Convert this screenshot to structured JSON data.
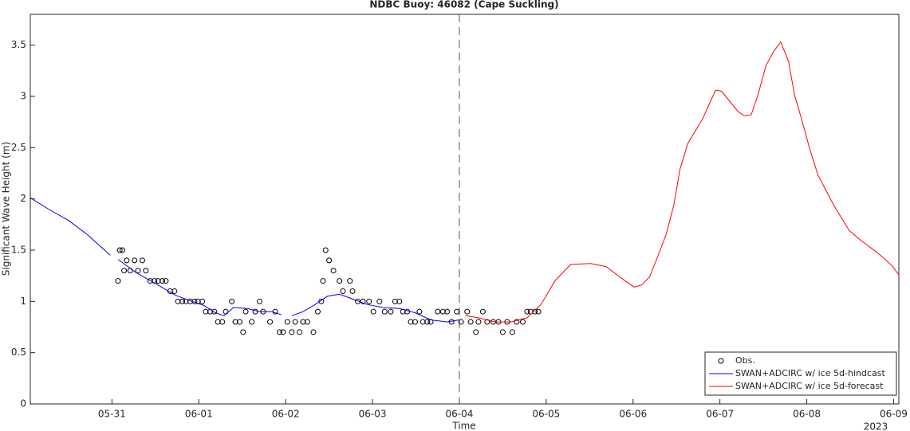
{
  "chart_data": {
    "type": "line",
    "title": "NDBC Buoy: 46082 (Cape Suckling)",
    "xlabel": "Time",
    "ylabel": "Significant Wave Height (m)",
    "year_label": "2023",
    "xlim": [
      -0.94,
      9.06
    ],
    "ylim": [
      0,
      3.8
    ],
    "xticks": [
      {
        "value": 0,
        "label": "05-31"
      },
      {
        "value": 1,
        "label": "06-01"
      },
      {
        "value": 2,
        "label": "06-02"
      },
      {
        "value": 3,
        "label": "06-03"
      },
      {
        "value": 4,
        "label": "06-04"
      },
      {
        "value": 5,
        "label": "06-05"
      },
      {
        "value": 6,
        "label": "06-06"
      },
      {
        "value": 7,
        "label": "06-07"
      },
      {
        "value": 8,
        "label": "06-08"
      },
      {
        "value": 9,
        "label": "06-09"
      }
    ],
    "yticks": [
      0,
      0.5,
      1,
      1.5,
      2,
      2.5,
      3,
      3.5
    ],
    "vline": 4,
    "grid": false,
    "legend": "lower right",
    "series": [
      {
        "name": "Obs.",
        "style": "markers",
        "color": "#000000",
        "x": [
          0.07,
          0.09,
          0.12,
          0.14,
          0.17,
          0.21,
          0.26,
          0.3,
          0.35,
          0.39,
          0.44,
          0.49,
          0.53,
          0.58,
          0.62,
          0.67,
          0.72,
          0.76,
          0.81,
          0.85,
          0.9,
          0.95,
          0.99,
          1.04,
          1.08,
          1.13,
          1.18,
          1.22,
          1.27,
          1.31,
          1.38,
          1.42,
          1.47,
          1.51,
          1.54,
          1.61,
          1.65,
          1.7,
          1.74,
          1.82,
          1.88,
          1.93,
          1.97,
          2.02,
          2.07,
          2.11,
          2.16,
          2.2,
          2.25,
          2.32,
          2.37,
          2.41,
          2.43,
          2.46,
          2.5,
          2.55,
          2.62,
          2.66,
          2.74,
          2.77,
          2.83,
          2.89,
          2.96,
          3.01,
          3.08,
          3.14,
          3.21,
          3.26,
          3.31,
          3.35,
          3.4,
          3.44,
          3.49,
          3.54,
          3.58,
          3.63,
          3.67,
          3.75,
          3.81,
          3.86,
          3.91,
          3.97,
          4.02,
          4.09,
          4.13,
          4.19,
          4.22,
          4.27,
          4.32,
          4.39,
          4.45,
          4.5,
          4.55,
          4.61,
          4.66,
          4.73,
          4.78,
          4.82,
          4.87,
          4.91
        ],
        "values": [
          1.2,
          1.5,
          1.5,
          1.3,
          1.4,
          1.3,
          1.4,
          1.3,
          1.4,
          1.3,
          1.2,
          1.2,
          1.2,
          1.2,
          1.2,
          1.1,
          1.1,
          1.0,
          1.0,
          1.0,
          1.0,
          1.0,
          1.0,
          1.0,
          0.9,
          0.9,
          0.9,
          0.8,
          0.8,
          0.9,
          1.0,
          0.8,
          0.8,
          0.7,
          0.9,
          0.8,
          0.9,
          1.0,
          0.9,
          0.8,
          0.9,
          0.7,
          0.7,
          0.8,
          0.7,
          0.8,
          0.7,
          0.8,
          0.8,
          0.7,
          0.9,
          1.0,
          1.2,
          1.5,
          1.4,
          1.3,
          1.2,
          1.1,
          1.2,
          1.1,
          1.0,
          1.0,
          1.0,
          0.9,
          1.0,
          0.9,
          0.9,
          1.0,
          1.0,
          0.9,
          0.9,
          0.8,
          0.8,
          0.9,
          0.8,
          0.8,
          0.8,
          0.9,
          0.9,
          0.9,
          0.8,
          0.9,
          0.8,
          0.9,
          0.8,
          0.7,
          0.8,
          0.9,
          0.8,
          0.8,
          0.8,
          0.7,
          0.8,
          0.7,
          0.8,
          0.8,
          0.9,
          0.9,
          0.9,
          0.9
        ]
      },
      {
        "name": "SWAN+ADCIRC w/ ice 5d-hindcast",
        "style": "line",
        "color": "#0000ff",
        "x": [
          -0.94,
          -0.73,
          -0.5,
          -0.28,
          -0.02,
          null,
          0.07,
          0.28,
          0.51,
          0.73,
          0.92,
          1.06,
          1.19,
          1.29,
          1.4,
          1.56,
          1.7,
          1.84,
          1.95,
          null,
          2.07,
          2.2,
          2.34,
          2.48,
          2.62,
          2.75,
          2.94,
          3.12,
          3.31,
          3.49,
          3.67,
          3.86,
          4.0
        ],
        "values": [
          2.01,
          1.9,
          1.79,
          1.65,
          1.45,
          null,
          1.41,
          1.28,
          1.17,
          1.06,
          1.0,
          0.96,
          0.89,
          0.86,
          0.94,
          0.93,
          0.9,
          0.9,
          0.87,
          null,
          0.86,
          0.9,
          0.97,
          1.05,
          1.07,
          1.03,
          0.97,
          0.94,
          0.93,
          0.89,
          0.82,
          0.8,
          0.82
        ]
      },
      {
        "name": "SWAN+ADCIRC w/ ice 5d-forecast",
        "style": "line",
        "color": "#ff0000",
        "x": [
          4.07,
          4.22,
          4.41,
          4.59,
          4.78,
          4.94,
          5.1,
          5.28,
          5.51,
          5.69,
          5.86,
          6.01,
          6.1,
          6.19,
          6.28,
          6.38,
          6.47,
          6.54,
          6.63,
          6.8,
          6.95,
          7.02,
          7.21,
          7.28,
          7.36,
          7.44,
          7.53,
          7.62,
          7.7,
          7.79,
          7.86,
          7.94,
          8.04,
          8.13,
          8.31,
          8.49,
          8.63,
          8.82,
          8.98,
          9.06
        ],
        "values": [
          0.86,
          0.84,
          0.8,
          0.8,
          0.84,
          0.97,
          1.2,
          1.36,
          1.37,
          1.34,
          1.23,
          1.14,
          1.16,
          1.24,
          1.43,
          1.65,
          1.94,
          2.29,
          2.54,
          2.78,
          3.06,
          3.05,
          2.85,
          2.81,
          2.82,
          3.02,
          3.3,
          3.44,
          3.53,
          3.34,
          3.01,
          2.78,
          2.47,
          2.23,
          1.94,
          1.69,
          1.59,
          1.47,
          1.35,
          1.26
        ]
      }
    ]
  }
}
